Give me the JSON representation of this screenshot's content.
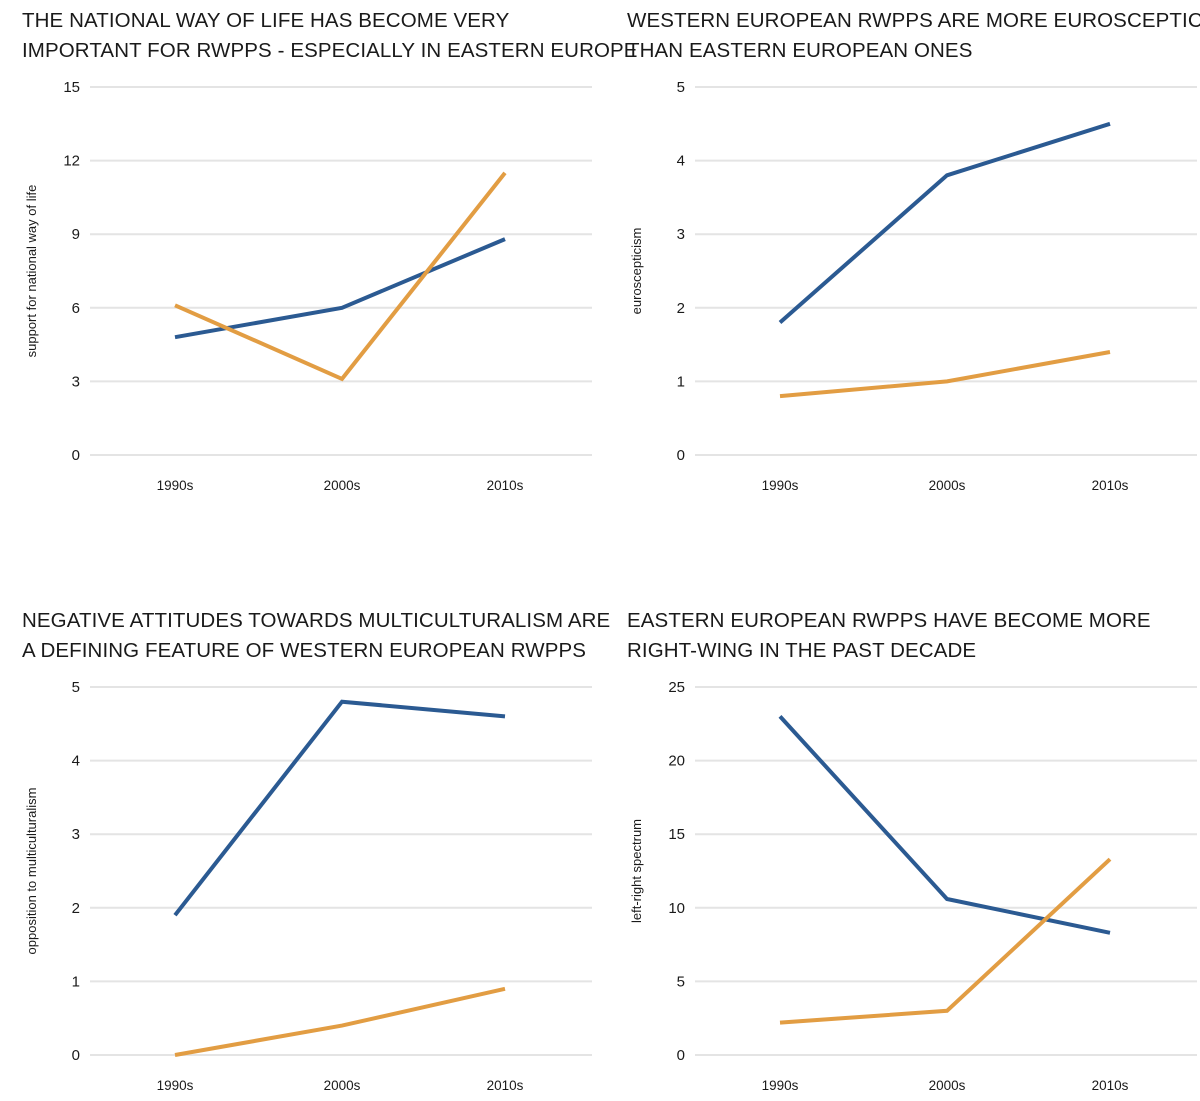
{
  "colors": {
    "series_a": "#2b5a92",
    "series_b": "#e29d43",
    "grid": "#e4e4e4"
  },
  "chart_data": [
    {
      "type": "line",
      "title": [
        "THE NATIONAL WAY OF LIFE HAS BECOME VERY",
        "IMPORTANT FOR RWPPS - ESPECIALLY IN EASTERN EUROPE"
      ],
      "xlabel": "",
      "ylabel": "support for national way of life",
      "categories": [
        "1990s",
        "2000s",
        "2010s"
      ],
      "yticks": [
        "0",
        "3",
        "6",
        "9",
        "12",
        "15"
      ],
      "ylim": [
        0,
        15
      ],
      "grid": true,
      "series": [
        {
          "values": [
            4.8,
            6.0,
            8.8
          ]
        },
        {
          "values": [
            6.1,
            3.1,
            11.5
          ]
        }
      ]
    },
    {
      "type": "line",
      "title": [
        "WESTERN EUROPEAN RWPPS ARE MORE EUROSCEPTIC",
        "THAN EASTERN EUROPEAN ONES"
      ],
      "xlabel": "",
      "ylabel": "euroscepticism",
      "categories": [
        "1990s",
        "2000s",
        "2010s"
      ],
      "yticks": [
        "0",
        "1",
        "2",
        "3",
        "4",
        "5"
      ],
      "ylim": [
        0,
        5
      ],
      "grid": true,
      "series": [
        {
          "values": [
            1.8,
            3.8,
            4.5
          ]
        },
        {
          "values": [
            0.8,
            1.0,
            1.4
          ]
        }
      ]
    },
    {
      "type": "line",
      "title": [
        "NEGATIVE ATTITUDES TOWARDS MULTICULTURALISM ARE",
        "A DEFINING FEATURE OF WESTERN EUROPEAN RWPPS"
      ],
      "xlabel": "",
      "ylabel": "opposition to multiculturalism",
      "categories": [
        "1990s",
        "2000s",
        "2010s"
      ],
      "yticks": [
        "0",
        "1",
        "2",
        "3",
        "4",
        "5"
      ],
      "ylim": [
        0,
        5
      ],
      "grid": true,
      "series": [
        {
          "values": [
            1.9,
            4.8,
            4.6
          ]
        },
        {
          "values": [
            0.0,
            0.4,
            0.9
          ]
        }
      ]
    },
    {
      "type": "line",
      "title": [
        "EASTERN EUROPEAN RWPPS HAVE BECOME MORE",
        "RIGHT-WING IN THE PAST DECADE"
      ],
      "xlabel": "",
      "ylabel": "left-right spectrum",
      "categories": [
        "1990s",
        "2000s",
        "2010s"
      ],
      "yticks": [
        "0",
        "5",
        "10",
        "15",
        "20",
        "25"
      ],
      "ylim": [
        0,
        25
      ],
      "grid": true,
      "series": [
        {
          "values": [
            23.0,
            10.6,
            8.3
          ]
        },
        {
          "values": [
            2.2,
            3.0,
            13.3
          ]
        }
      ]
    }
  ]
}
